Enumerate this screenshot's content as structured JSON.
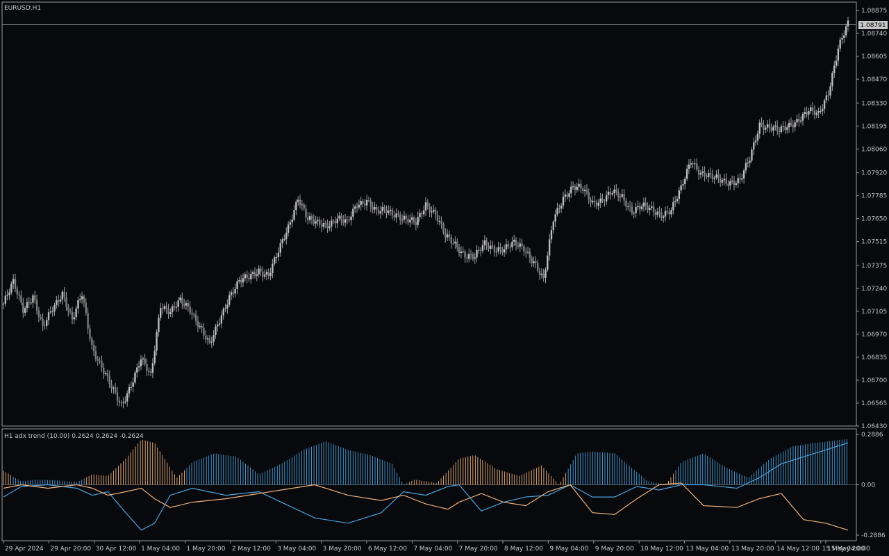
{
  "chart_data": [
    {
      "type": "candlestick",
      "title": "EURUSD,H1",
      "symbol": "EURUSD",
      "timeframe": "H1",
      "current_price": "1.08791",
      "ylim": [
        1.0643,
        1.08875
      ],
      "y_ticks": [
        "1.08875",
        "1.08740",
        "1.08605",
        "1.08470",
        "1.08330",
        "1.08195",
        "1.08060",
        "1.07920",
        "1.07785",
        "1.07650",
        "1.07515",
        "1.07375",
        "1.07240",
        "1.07105",
        "1.06970",
        "1.06835",
        "1.06700",
        "1.06565",
        "1.06430"
      ],
      "x_ticks": [
        "29 Apr 2024",
        "29 Apr 20:00",
        "30 Apr 12:00",
        "1 May 04:00",
        "1 May 20:00",
        "2 May 12:00",
        "3 May 04:00",
        "3 May 20:00",
        "6 May 12:00",
        "7 May 04:00",
        "7 May 20:00",
        "8 May 12:00",
        "9 May 04:00",
        "9 May 20:00",
        "10 May 12:00",
        "13 May 04:00",
        "13 May 20:00",
        "14 May 12:00",
        "15 May 04:00",
        "15 May 20:00"
      ],
      "close_path": [
        [
          0,
          1.0715
        ],
        [
          5,
          1.0727
        ],
        [
          10,
          1.0712
        ],
        [
          15,
          1.072
        ],
        [
          20,
          1.07
        ],
        [
          25,
          1.0712
        ],
        [
          30,
          1.0722
        ],
        [
          35,
          1.0705
        ],
        [
          40,
          1.072
        ],
        [
          45,
          1.069
        ],
        [
          50,
          1.0678
        ],
        [
          55,
          1.0665
        ],
        [
          60,
          1.0655
        ],
        [
          65,
          1.0668
        ],
        [
          70,
          1.0682
        ],
        [
          75,
          1.0672
        ],
        [
          80,
          1.0715
        ],
        [
          85,
          1.071
        ],
        [
          90,
          1.0716
        ],
        [
          95,
          1.0712
        ],
        [
          100,
          1.0702
        ],
        [
          105,
          1.069
        ],
        [
          110,
          1.0705
        ],
        [
          115,
          1.072
        ],
        [
          120,
          1.0728
        ],
        [
          125,
          1.073
        ],
        [
          130,
          1.0735
        ],
        [
          135,
          1.0732
        ],
        [
          140,
          1.0745
        ],
        [
          145,
          1.076
        ],
        [
          150,
          1.0778
        ],
        [
          155,
          1.0764
        ],
        [
          160,
          1.0762
        ],
        [
          165,
          1.0762
        ],
        [
          170,
          1.0765
        ],
        [
          175,
          1.0762
        ],
        [
          180,
          1.0774
        ],
        [
          185,
          1.0776
        ],
        [
          190,
          1.0768
        ],
        [
          195,
          1.077
        ],
        [
          200,
          1.0768
        ],
        [
          205,
          1.0764
        ],
        [
          210,
          1.0762
        ],
        [
          215,
          1.0774
        ],
        [
          220,
          1.0768
        ],
        [
          225,
          1.0754
        ],
        [
          230,
          1.075
        ],
        [
          235,
          1.0744
        ],
        [
          240,
          1.0742
        ],
        [
          245,
          1.075
        ],
        [
          250,
          1.0748
        ],
        [
          255,
          1.0747
        ],
        [
          260,
          1.075
        ],
        [
          265,
          1.0748
        ],
        [
          270,
          1.074
        ],
        [
          275,
          1.0728
        ],
        [
          280,
          1.0765
        ],
        [
          285,
          1.0778
        ],
        [
          290,
          1.0783
        ],
        [
          295,
          1.0782
        ],
        [
          300,
          1.0775
        ],
        [
          305,
          1.0776
        ],
        [
          310,
          1.078
        ],
        [
          315,
          1.0778
        ],
        [
          320,
          1.077
        ],
        [
          325,
          1.0772
        ],
        [
          330,
          1.077
        ],
        [
          335,
          1.0768
        ],
        [
          340,
          1.077
        ],
        [
          345,
          1.0782
        ],
        [
          350,
          1.08
        ],
        [
          355,
          1.0792
        ],
        [
          360,
          1.0789
        ],
        [
          365,
          1.0788
        ],
        [
          370,
          1.0787
        ],
        [
          375,
          1.0787
        ],
        [
          380,
          1.08
        ],
        [
          385,
          1.0821
        ],
        [
          390,
          1.0819
        ],
        [
          395,
          1.0816
        ],
        [
          400,
          1.082
        ],
        [
          405,
          1.0824
        ],
        [
          410,
          1.0828
        ],
        [
          415,
          1.0826
        ],
        [
          420,
          1.084
        ],
        [
          425,
          1.0865
        ],
        [
          430,
          1.0879
        ]
      ]
    },
    {
      "type": "histogram",
      "title": "H1 adx trend (10.00) 0.2624 0.2624 -0.2624",
      "ylim": [
        -0.2886,
        0.2886
      ],
      "y_ticks": [
        "0.2886",
        "0.00",
        "-0.2886"
      ],
      "colors": {
        "positive": "#4aa3df",
        "negative": "#f0b27a"
      },
      "histogram": [
        {
          "t": 0,
          "v": 0.08,
          "c": "negative"
        },
        {
          "t": 8,
          "v": 0.02,
          "c": "positive"
        },
        {
          "t": 15,
          "v": 0.03,
          "c": "positive"
        },
        {
          "t": 25,
          "v": 0.025,
          "c": "positive"
        },
        {
          "t": 33,
          "v": 0.015,
          "c": "positive"
        },
        {
          "t": 40,
          "v": 0.06,
          "c": "negative"
        },
        {
          "t": 47,
          "v": 0.05,
          "c": "negative"
        },
        {
          "t": 55,
          "v": 0.15,
          "c": "negative"
        },
        {
          "t": 62,
          "v": 0.26,
          "c": "negative"
        },
        {
          "t": 68,
          "v": 0.24,
          "c": "negative"
        },
        {
          "t": 78,
          "v": 0.04,
          "c": "negative"
        },
        {
          "t": 85,
          "v": 0.13,
          "c": "positive"
        },
        {
          "t": 95,
          "v": 0.18,
          "c": "positive"
        },
        {
          "t": 105,
          "v": 0.16,
          "c": "positive"
        },
        {
          "t": 115,
          "v": 0.06,
          "c": "positive"
        },
        {
          "t": 125,
          "v": 0.12,
          "c": "positive"
        },
        {
          "t": 135,
          "v": 0.2,
          "c": "positive"
        },
        {
          "t": 145,
          "v": 0.25,
          "c": "positive"
        },
        {
          "t": 155,
          "v": 0.2,
          "c": "positive"
        },
        {
          "t": 165,
          "v": 0.17,
          "c": "positive"
        },
        {
          "t": 175,
          "v": 0.12,
          "c": "positive"
        },
        {
          "t": 180,
          "v": 0.0,
          "c": "positive"
        },
        {
          "t": 185,
          "v": 0.03,
          "c": "negative"
        },
        {
          "t": 195,
          "v": 0.01,
          "c": "negative"
        },
        {
          "t": 205,
          "v": 0.15,
          "c": "negative"
        },
        {
          "t": 212,
          "v": 0.17,
          "c": "negative"
        },
        {
          "t": 222,
          "v": 0.09,
          "c": "negative"
        },
        {
          "t": 232,
          "v": 0.05,
          "c": "negative"
        },
        {
          "t": 242,
          "v": 0.11,
          "c": "negative"
        },
        {
          "t": 250,
          "v": 0.0,
          "c": "negative"
        },
        {
          "t": 258,
          "v": 0.18,
          "c": "positive"
        },
        {
          "t": 265,
          "v": 0.19,
          "c": "positive"
        },
        {
          "t": 275,
          "v": 0.18,
          "c": "positive"
        },
        {
          "t": 290,
          "v": 0.02,
          "c": "positive"
        },
        {
          "t": 298,
          "v": 0.0,
          "c": "negative"
        },
        {
          "t": 305,
          "v": 0.13,
          "c": "positive"
        },
        {
          "t": 315,
          "v": 0.18,
          "c": "positive"
        },
        {
          "t": 325,
          "v": 0.1,
          "c": "positive"
        },
        {
          "t": 335,
          "v": 0.04,
          "c": "positive"
        },
        {
          "t": 345,
          "v": 0.15,
          "c": "positive"
        },
        {
          "t": 355,
          "v": 0.22,
          "c": "positive"
        },
        {
          "t": 365,
          "v": 0.24,
          "c": "positive"
        },
        {
          "t": 372,
          "v": 0.25,
          "c": "positive"
        },
        {
          "t": 380,
          "v": 0.262,
          "c": "positive"
        }
      ],
      "series": [
        {
          "color": "blue",
          "points": [
            [
              0,
              -0.07
            ],
            [
              8,
              -0.01
            ],
            [
              20,
              0.0
            ],
            [
              33,
              -0.02
            ],
            [
              40,
              -0.06
            ],
            [
              47,
              -0.04
            ],
            [
              55,
              -0.16
            ],
            [
              62,
              -0.26
            ],
            [
              68,
              -0.22
            ],
            [
              75,
              -0.06
            ],
            [
              85,
              -0.02
            ],
            [
              100,
              -0.06
            ],
            [
              115,
              -0.04
            ],
            [
              125,
              -0.1
            ],
            [
              140,
              -0.19
            ],
            [
              155,
              -0.22
            ],
            [
              170,
              -0.16
            ],
            [
              180,
              -0.04
            ],
            [
              190,
              -0.06
            ],
            [
              200,
              -0.01
            ],
            [
              205,
              0.0
            ],
            [
              215,
              -0.15
            ],
            [
              225,
              -0.1
            ],
            [
              235,
              -0.07
            ],
            [
              245,
              -0.06
            ],
            [
              255,
              0.0
            ],
            [
              265,
              -0.07
            ],
            [
              275,
              -0.07
            ],
            [
              285,
              -0.01
            ],
            [
              295,
              -0.03
            ],
            [
              305,
              0.0
            ],
            [
              315,
              0.0
            ],
            [
              330,
              -0.02
            ],
            [
              340,
              0.04
            ],
            [
              350,
              0.12
            ],
            [
              360,
              0.16
            ],
            [
              370,
              0.2
            ],
            [
              380,
              0.24
            ]
          ]
        },
        {
          "color": "orange",
          "points": [
            [
              0,
              -0.02
            ],
            [
              8,
              0.0
            ],
            [
              20,
              -0.02
            ],
            [
              33,
              0.0
            ],
            [
              40,
              -0.02
            ],
            [
              47,
              -0.06
            ],
            [
              55,
              -0.04
            ],
            [
              62,
              -0.02
            ],
            [
              68,
              -0.08
            ],
            [
              75,
              -0.13
            ],
            [
              85,
              -0.1
            ],
            [
              100,
              -0.08
            ],
            [
              115,
              -0.05
            ],
            [
              125,
              -0.03
            ],
            [
              140,
              0.0
            ],
            [
              155,
              -0.06
            ],
            [
              170,
              -0.09
            ],
            [
              180,
              -0.06
            ],
            [
              190,
              -0.11
            ],
            [
              200,
              -0.14
            ],
            [
              205,
              -0.1
            ],
            [
              215,
              -0.05
            ],
            [
              225,
              -0.1
            ],
            [
              235,
              -0.12
            ],
            [
              245,
              -0.04
            ],
            [
              255,
              0.0
            ],
            [
              265,
              -0.16
            ],
            [
              275,
              -0.17
            ],
            [
              285,
              -0.08
            ],
            [
              295,
              0.0
            ],
            [
              305,
              0.01
            ],
            [
              315,
              -0.12
            ],
            [
              330,
              -0.13
            ],
            [
              340,
              -0.08
            ],
            [
              350,
              -0.05
            ],
            [
              360,
              -0.2
            ],
            [
              370,
              -0.22
            ],
            [
              380,
              -0.26
            ]
          ]
        }
      ]
    }
  ]
}
